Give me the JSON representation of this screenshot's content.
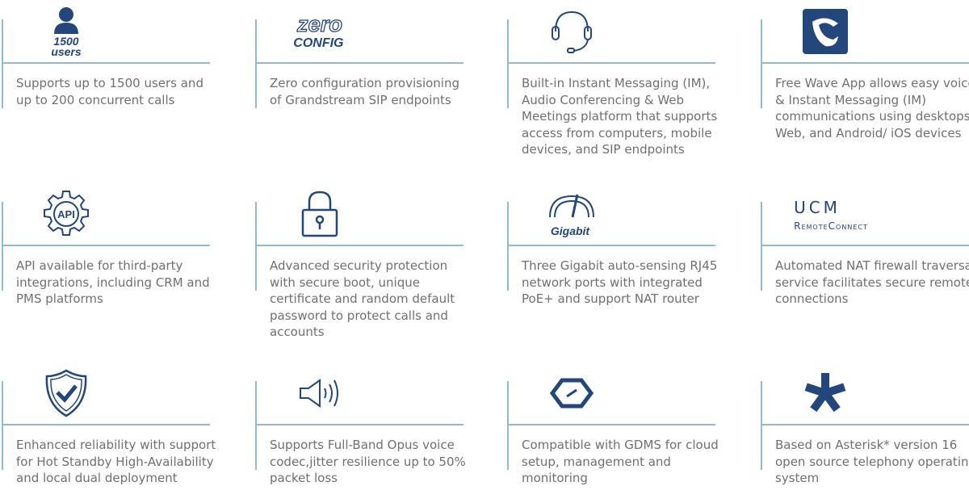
{
  "colors": {
    "icon": "#23467d",
    "line": "#8fbcd3",
    "text": "#707070"
  },
  "features": [
    {
      "icon": "user-icon",
      "icon_text": [
        "1500",
        "users"
      ],
      "text": "Supports up to 1500 users and up to 200 concurrent calls"
    },
    {
      "icon": "zero-config-logo",
      "icon_text": [
        "zero",
        "CONFIG"
      ],
      "text": "Zero configuration provisioning of Grandstream SIP endpoints"
    },
    {
      "icon": "headset-icon",
      "text": "Built-in Instant Messaging (IM), Audio Conferencing & Web Meetings platform that supports access from computers, mobile devices, and SIP endpoints"
    },
    {
      "icon": "wave-app-icon",
      "text": "Free Wave App allows easy voice & Instant Messaging (IM) communications using desktops, Web, and Android/ iOS devices"
    },
    {
      "icon": "api-gear-icon",
      "icon_text": [
        "API"
      ],
      "text": "API available for third-party integrations, including CRM and PMS platforms"
    },
    {
      "icon": "padlock-icon",
      "text": "Advanced security protection with secure boot, unique certificate and random default password to protect calls and accounts"
    },
    {
      "icon": "gigabit-speedometer-icon",
      "icon_text": [
        "Gigabit"
      ],
      "text": "Three Gigabit auto-sensing RJ45 network ports with integrated PoE+ and support NAT router"
    },
    {
      "icon": "ucm-remoteconnect-logo",
      "icon_text": [
        "UCM",
        "RemoteConnect"
      ],
      "text": "Automated NAT firewall traversal service facilitates secure remote connections"
    },
    {
      "icon": "shield-check-icon",
      "text": "Enhanced reliability with support for Hot Standby High-Availability and local dual deployment"
    },
    {
      "icon": "speaker-icon",
      "text": "Supports Full-Band Opus voice codec,jitter resilience up to 50% packet loss"
    },
    {
      "icon": "gdms-icon",
      "text": "Compatible with GDMS for cloud setup, management and monitoring"
    },
    {
      "icon": "asterisk-icon",
      "text": "Based on Asterisk* version 16 open source telephony operating system"
    }
  ]
}
